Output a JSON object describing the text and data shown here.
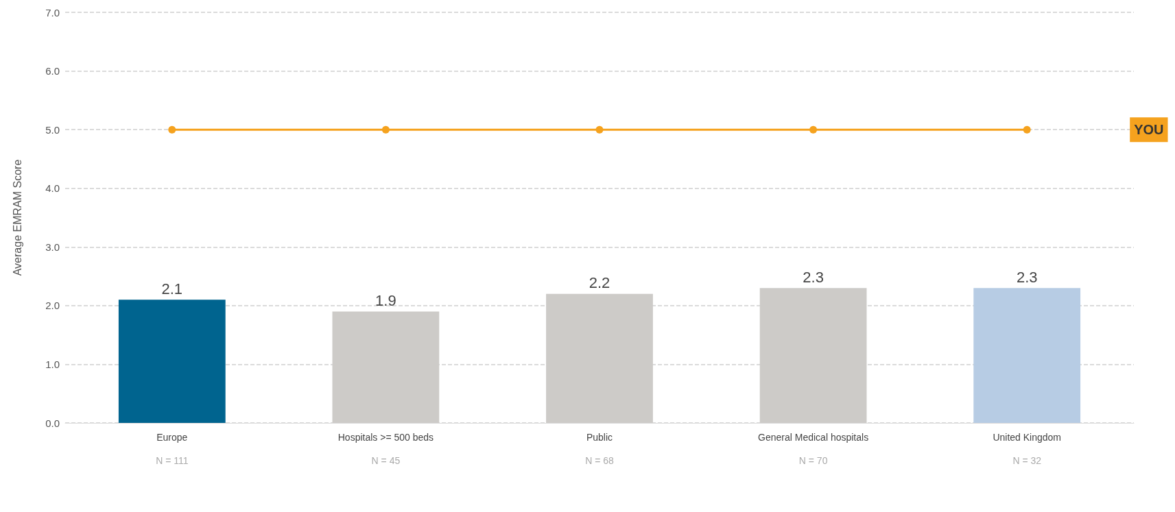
{
  "chart_data": {
    "type": "bar",
    "ylabel": "Average EMRAM Score",
    "categories": [
      "Europe",
      "Hospitals >= 500 beds",
      "Public",
      "General Medical hospitals",
      "United Kingdom"
    ],
    "series": [
      {
        "values": [
          2.1,
          1.9,
          2.2,
          2.3,
          2.3
        ],
        "value_labels": [
          "2.1",
          "1.9",
          "2.2",
          "2.3",
          "2.3"
        ],
        "colors": [
          "#00648f",
          "#cdcbc8",
          "#cdcbc8",
          "#cdcbc8",
          "#b7cce4"
        ]
      },
      {
        "type": "line",
        "name": "YOU",
        "color": "#f5a21e",
        "values": [
          5.0,
          5.0,
          5.0,
          5.0,
          5.0
        ],
        "marker": "circle"
      }
    ],
    "annotations": [
      "N = 111",
      "N = 45",
      "N = 68",
      "N = 70",
      "N = 32"
    ],
    "ylim": [
      0,
      7
    ],
    "yticks": [
      {
        "value": 0,
        "label": "0.0"
      },
      {
        "value": 1,
        "label": "1.0"
      },
      {
        "value": 2,
        "label": "2.0"
      },
      {
        "value": 3,
        "label": "3.0"
      },
      {
        "value": 4,
        "label": "4.0"
      },
      {
        "value": 5,
        "label": "5.0"
      },
      {
        "value": 6,
        "label": "6.0"
      },
      {
        "value": 7,
        "label": "7.0"
      }
    ],
    "grid": "y",
    "legend": false
  }
}
